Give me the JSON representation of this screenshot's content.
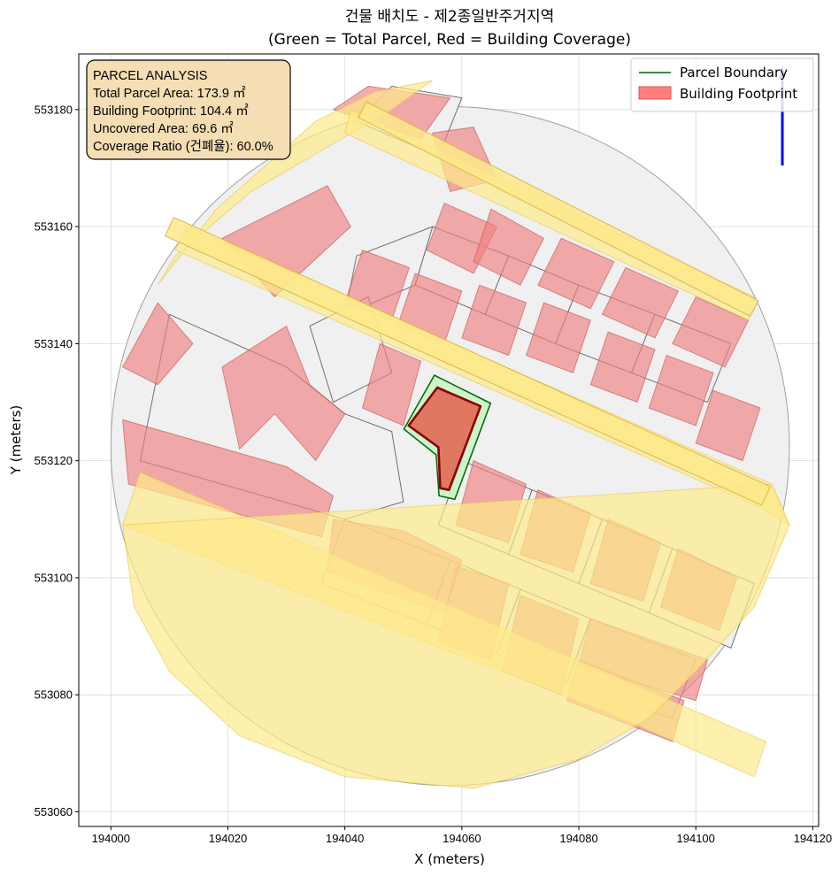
{
  "chart_data": {
    "type": "map",
    "title_line1": "건물 배치도 - 제2종일반주거지역",
    "title_line2": "(Green = Total Parcel, Red = Building Coverage)",
    "xlabel": "X (meters)",
    "ylabel": "Y (meters)",
    "xlim": [
      193994.5,
      194121
    ],
    "ylim": [
      553057.5,
      553189.5
    ],
    "x_ticks": [
      194000,
      194020,
      194040,
      194060,
      194080,
      194100,
      194120
    ],
    "y_ticks": [
      553060,
      553080,
      553100,
      553120,
      553140,
      553160,
      553180
    ],
    "grid": true,
    "info_box": {
      "lines": [
        "PARCEL ANALYSIS",
        "Total Parcel Area: 173.9 ㎡",
        "Building Footprint: 104.4 ㎡",
        "Uncovered Area: 69.6 ㎡",
        "Coverage Ratio (건폐율): 60.0%"
      ]
    },
    "legend": {
      "placement": "top-right",
      "items": [
        {
          "label": "Parcel Boundary",
          "kind": "line",
          "color": "#006400"
        },
        {
          "label": "Building Footprint",
          "kind": "patch",
          "color": "#ff7f7f"
        }
      ]
    },
    "colors": {
      "parcel_fill": "#c8f5c8",
      "parcel_edge": "#006400",
      "building_fill": "#e0705a",
      "building_edge": "#8b0000",
      "roads": "#fde98a",
      "neighbor_lots": "#f0f0f0",
      "neighbor_buildings": "#f08080",
      "north_arrow": "#0000ff"
    },
    "target_parcel": [
      [
        194055.3,
        553134.6
      ],
      [
        194064.9,
        553129.8
      ],
      [
        194058.8,
        553113.4
      ],
      [
        194056.1,
        553114.0
      ],
      [
        194055.6,
        553121.0
      ],
      [
        194050.1,
        553125.4
      ]
    ],
    "target_building": [
      [
        194055.8,
        553132.5
      ],
      [
        194063.2,
        553129.3
      ],
      [
        194057.8,
        553115.0
      ],
      [
        194056.3,
        553115.3
      ],
      [
        194056.0,
        553122.3
      ],
      [
        194050.9,
        553126.0
      ]
    ],
    "context_circle": {
      "center": [
        194058.0,
        553122.5
      ],
      "radius": 58
    },
    "road_areas": [
      [
        [
          194008,
          553150
        ],
        [
          194018,
          553163
        ],
        [
          194035,
          553178
        ],
        [
          194045,
          553183
        ],
        [
          194055,
          553185
        ],
        [
          194048,
          553180
        ],
        [
          194024,
          553166
        ],
        [
          194011,
          553155
        ]
      ],
      [
        [
          194011,
          553156
        ],
        [
          194013,
          553160
        ],
        [
          194113,
          553116
        ],
        [
          194116,
          553109
        ],
        [
          194111,
          553112
        ]
      ],
      [
        [
          194040,
          553176
        ],
        [
          194041,
          553180
        ],
        [
          194110,
          553148
        ],
        [
          194109,
          553144
        ]
      ],
      [
        [
          194002,
          553109
        ],
        [
          194005,
          553118
        ],
        [
          194112,
          553072
        ],
        [
          194110,
          553066
        ],
        [
          194085,
          553077
        ]
      ],
      [
        [
          194002,
          553109
        ],
        [
          194004,
          553095
        ],
        [
          194010,
          553084
        ],
        [
          194022,
          553073
        ],
        [
          194040,
          553066
        ],
        [
          194062,
          553064
        ],
        [
          194080,
          553069
        ],
        [
          194092,
          553076
        ],
        [
          194100,
          553084
        ],
        [
          194110,
          553095
        ],
        [
          194116,
          553109
        ],
        [
          194113,
          553116
        ]
      ]
    ],
    "road_stripes": [
      {
        "from": [
          194010,
          553160
        ],
        "to": [
          194112,
          553114
        ],
        "width": 3.5
      },
      {
        "from": [
          194043,
          553180
        ],
        "to": [
          194110,
          553146
        ],
        "width": 3
      }
    ],
    "neighbor_lots": [
      [
        [
          194055,
          553160
        ],
        [
          194068,
          553155
        ],
        [
          194064,
          553145
        ],
        [
          194052,
          553150
        ]
      ],
      [
        [
          194068,
          553155
        ],
        [
          194080,
          553150
        ],
        [
          194076,
          553140
        ],
        [
          194064,
          553145
        ]
      ],
      [
        [
          194080,
          553150
        ],
        [
          194093,
          553145
        ],
        [
          194089,
          553135
        ],
        [
          194076,
          553140
        ]
      ],
      [
        [
          194093,
          553145
        ],
        [
          194106,
          553140
        ],
        [
          194102,
          553130
        ],
        [
          194089,
          553135
        ]
      ],
      [
        [
          194042,
          553155
        ],
        [
          194055,
          553160
        ],
        [
          194052,
          553150
        ],
        [
          194040,
          553145
        ]
      ],
      [
        [
          194060,
          553120
        ],
        [
          194072,
          553115
        ],
        [
          194068,
          553104
        ],
        [
          194056,
          553109
        ]
      ],
      [
        [
          194072,
          553115
        ],
        [
          194084,
          553110
        ],
        [
          194080,
          553099
        ],
        [
          194068,
          553104
        ]
      ],
      [
        [
          194084,
          553110
        ],
        [
          194096,
          553105
        ],
        [
          194092,
          553094
        ],
        [
          194080,
          553099
        ]
      ],
      [
        [
          194096,
          553105
        ],
        [
          194110,
          553099
        ],
        [
          194106,
          553088
        ],
        [
          194092,
          553094
        ]
      ],
      [
        [
          194058,
          553103
        ],
        [
          194070,
          553098
        ],
        [
          194066,
          553087
        ],
        [
          194054,
          553092
        ]
      ],
      [
        [
          194070,
          553098
        ],
        [
          194082,
          553093
        ],
        [
          194078,
          553082
        ],
        [
          194066,
          553087
        ]
      ],
      [
        [
          194082,
          553093
        ],
        [
          194100,
          553086
        ],
        [
          194096,
          553076
        ],
        [
          194078,
          553082
        ]
      ],
      [
        [
          194044,
          553148
        ],
        [
          194048,
          553135
        ],
        [
          194038,
          553130
        ],
        [
          194034,
          553143
        ]
      ],
      [
        [
          194005,
          553120
        ],
        [
          194040,
          553110
        ],
        [
          194050,
          553113
        ],
        [
          194048,
          553125
        ],
        [
          194040,
          553128
        ],
        [
          194030,
          553136
        ],
        [
          194010,
          553145
        ]
      ],
      [
        [
          194040,
          553110
        ],
        [
          194058,
          553103
        ],
        [
          194054,
          553092
        ],
        [
          194036,
          553099
        ]
      ],
      [
        [
          194042,
          553178
        ],
        [
          194048,
          553184
        ],
        [
          194060,
          553182
        ],
        [
          194056,
          553172
        ]
      ]
    ],
    "neighbor_buildings": [
      [
        [
          194055,
          553176
        ],
        [
          194062,
          553177
        ],
        [
          194066,
          553168
        ],
        [
          194058,
          553166
        ]
      ],
      [
        [
          194057,
          553164
        ],
        [
          194066,
          553160
        ],
        [
          194062,
          553152
        ],
        [
          194054,
          553156
        ]
      ],
      [
        [
          194065,
          553163
        ],
        [
          194074,
          553158
        ],
        [
          194070,
          553150
        ],
        [
          194062,
          553154
        ]
      ],
      [
        [
          194077,
          553158
        ],
        [
          194086,
          553154
        ],
        [
          194082,
          553146
        ],
        [
          194073,
          553150
        ]
      ],
      [
        [
          194088,
          553153
        ],
        [
          194097,
          553149
        ],
        [
          194093,
          553141
        ],
        [
          194084,
          553145
        ]
      ],
      [
        [
          194100,
          553148
        ],
        [
          194109,
          553144
        ],
        [
          194105,
          553136
        ],
        [
          194096,
          553140
        ]
      ],
      [
        [
          194043,
          553156
        ],
        [
          194051,
          553153
        ],
        [
          194048,
          553144
        ],
        [
          194040,
          553147
        ]
      ],
      [
        [
          194052,
          553152
        ],
        [
          194060,
          553149
        ],
        [
          194057,
          553140
        ],
        [
          194049,
          553143
        ]
      ],
      [
        [
          194063,
          553150
        ],
        [
          194071,
          553147
        ],
        [
          194068,
          553138
        ],
        [
          194060,
          553141
        ]
      ],
      [
        [
          194074,
          553147
        ],
        [
          194082,
          553144
        ],
        [
          194079,
          553135
        ],
        [
          194071,
          553138
        ]
      ],
      [
        [
          194085,
          553142
        ],
        [
          194093,
          553139
        ],
        [
          194090,
          553130
        ],
        [
          194082,
          553133
        ]
      ],
      [
        [
          194095,
          553138
        ],
        [
          194103,
          553135
        ],
        [
          194100,
          553126
        ],
        [
          194092,
          553129
        ]
      ],
      [
        [
          194103,
          553132
        ],
        [
          194111,
          553129
        ],
        [
          194108,
          553120
        ],
        [
          194100,
          553123
        ]
      ],
      [
        [
          194046,
          553140
        ],
        [
          194053,
          553137
        ],
        [
          194050,
          553126
        ],
        [
          194043,
          553129
        ]
      ],
      [
        [
          194062,
          553120
        ],
        [
          194071,
          553116
        ],
        [
          194068,
          553106
        ],
        [
          194059,
          553109
        ]
      ],
      [
        [
          194073,
          553115
        ],
        [
          194082,
          553111
        ],
        [
          194079,
          553101
        ],
        [
          194070,
          553104
        ]
      ],
      [
        [
          194085,
          553110
        ],
        [
          194094,
          553106
        ],
        [
          194091,
          553096
        ],
        [
          194082,
          553099
        ]
      ],
      [
        [
          194097,
          553105
        ],
        [
          194107,
          553100
        ],
        [
          194104,
          553091
        ],
        [
          194094,
          553095
        ]
      ],
      [
        [
          194059,
          553102
        ],
        [
          194068,
          553099
        ],
        [
          194065,
          553086
        ],
        [
          194056,
          553089
        ]
      ],
      [
        [
          194070,
          553097
        ],
        [
          194080,
          553093
        ],
        [
          194077,
          553080
        ],
        [
          194067,
          553084
        ]
      ],
      [
        [
          194082,
          553093
        ],
        [
          194102,
          553086
        ],
        [
          194100,
          553079
        ],
        [
          194080,
          553085
        ]
      ],
      [
        [
          194080,
          553086
        ],
        [
          194098,
          553079
        ],
        [
          194096,
          553072
        ],
        [
          194078,
          553079
        ]
      ],
      [
        [
          194019,
          553158
        ],
        [
          194037,
          553167
        ],
        [
          194041,
          553160
        ],
        [
          194028,
          553148
        ]
      ],
      [
        [
          194019,
          553136
        ],
        [
          194030,
          553143
        ],
        [
          194034,
          553133
        ],
        [
          194040,
          553128
        ],
        [
          194035,
          553120
        ],
        [
          194028,
          553128
        ],
        [
          194022,
          553122
        ]
      ],
      [
        [
          194002,
          553127
        ],
        [
          194030,
          553119
        ],
        [
          194038,
          553114
        ],
        [
          194036,
          553107
        ],
        [
          194003,
          553116
        ]
      ],
      [
        [
          194038,
          553110
        ],
        [
          194050,
          553108
        ],
        [
          194060,
          553103
        ],
        [
          194057,
          553094
        ],
        [
          194037,
          553101
        ]
      ],
      [
        [
          194002,
          553136
        ],
        [
          194008,
          553147
        ],
        [
          194014,
          553140
        ],
        [
          194008,
          553133
        ]
      ],
      [
        [
          194038,
          553180
        ],
        [
          194044,
          553184
        ],
        [
          194058,
          553182
        ],
        [
          194053,
          553175
        ]
      ]
    ]
  }
}
